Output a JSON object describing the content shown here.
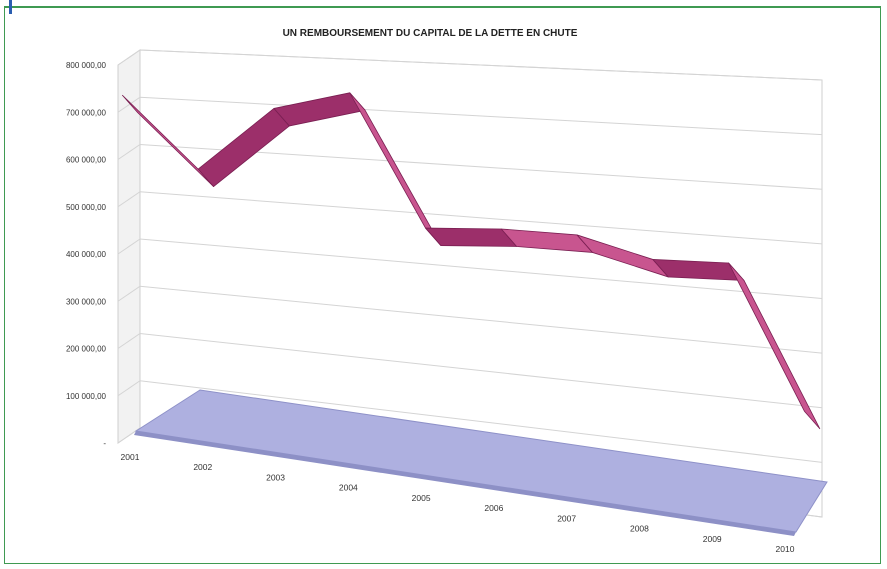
{
  "chart_data": {
    "type": "area",
    "title": "UN REMBOURSEMENT DU CAPITAL DE LA DETTE EN CHUTE",
    "categories": [
      "2001",
      "2002",
      "2003",
      "2004",
      "2005",
      "2006",
      "2007",
      "2008",
      "2009",
      "2010"
    ],
    "series": [
      {
        "values": [
          700000,
          555000,
          690000,
          730000,
          470000,
          480000,
          480000,
          445000,
          450000,
          190000
        ]
      }
    ],
    "y_ticks": [
      "800 000,00",
      "700 000,00",
      "600 000,00",
      "500 000,00",
      "400 000,00",
      "300 000,00",
      "200 000,00",
      "100 000,00",
      "-"
    ],
    "ylim": [
      0,
      800000
    ],
    "grid": true,
    "xlabel": "",
    "ylabel": "",
    "colors": {
      "ribbon": "#c8558f",
      "ribbon_dark": "#9c2f6a",
      "floor": "#aeb0e0",
      "grid": "#d4d4d4"
    }
  }
}
